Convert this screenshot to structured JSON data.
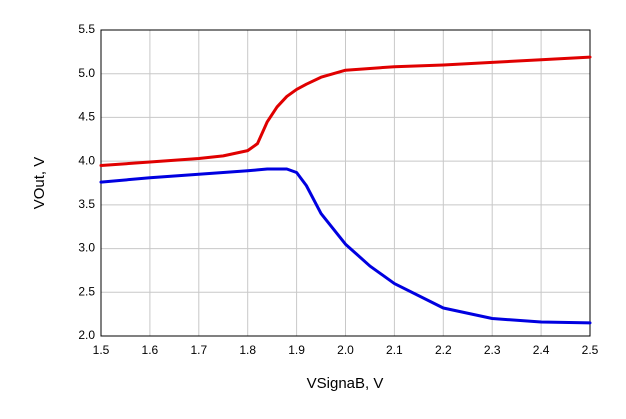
{
  "chart_data": {
    "type": "line",
    "x_label": "VSignaB, V",
    "y_label": "VOut, V",
    "x": [
      1.5,
      1.6,
      1.7,
      1.75,
      1.8,
      1.82,
      1.84,
      1.86,
      1.88,
      1.9,
      1.92,
      1.95,
      2.0,
      2.05,
      2.1,
      2.2,
      2.3,
      2.4,
      2.5
    ],
    "series": [
      {
        "color": "#e00000",
        "values": [
          3.95,
          3.99,
          4.03,
          4.06,
          4.12,
          4.2,
          4.45,
          4.62,
          4.74,
          4.82,
          4.88,
          4.96,
          5.04,
          5.06,
          5.08,
          5.1,
          5.13,
          5.16,
          5.19
        ]
      },
      {
        "color": "#0000e0",
        "values": [
          3.76,
          3.81,
          3.85,
          3.87,
          3.89,
          3.9,
          3.91,
          3.91,
          3.91,
          3.87,
          3.72,
          3.4,
          3.05,
          2.8,
          2.6,
          2.32,
          2.2,
          2.16,
          2.15
        ]
      }
    ],
    "xlim": [
      1.5,
      2.5
    ],
    "ylim": [
      2.0,
      5.5
    ],
    "xticks": [
      1.5,
      1.6,
      1.7,
      1.8,
      1.9,
      {
        "value": 2,
        "label": "2.0"
      },
      2.1,
      2.2,
      2.3,
      2.4,
      2.5
    ],
    "yticks": [
      {
        "value": 2,
        "label": "2.0"
      },
      2.5,
      {
        "value": 3,
        "label": "3.0"
      },
      3.5,
      {
        "value": 4,
        "label": "4.0"
      },
      4.5,
      {
        "value": 5,
        "label": "5.0"
      },
      5.5
    ],
    "grid": true
  }
}
